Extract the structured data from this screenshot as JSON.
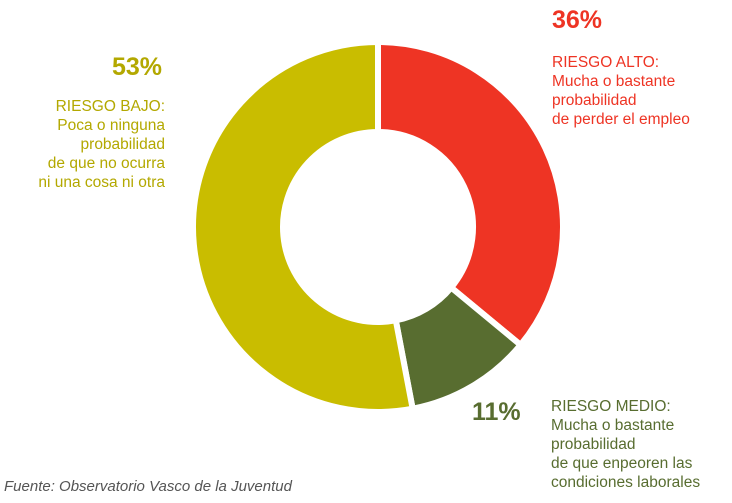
{
  "chart_data": {
    "type": "pie",
    "variant": "donut",
    "slices": [
      {
        "key": "alto",
        "value": 36,
        "value_label": "36%",
        "color": "#ee3424",
        "label_lines": [
          "RIESGO ALTO:",
          "Mucha o bastante",
          "probabilidad",
          "de perder el empleo"
        ]
      },
      {
        "key": "medio",
        "value": 11,
        "value_label": "11%",
        "color": "#586d30",
        "label_lines": [
          "RIESGO MEDIO:",
          "Mucha o bastante",
          "probabilidad",
          "de que enpeoren las",
          "condiciones laborales"
        ]
      },
      {
        "key": "bajo",
        "value": 53,
        "value_label": "53%",
        "color": "#c9bd00",
        "label_lines": [
          "RIESGO BAJO:",
          "Poca o ninguna",
          "probabilidad",
          "de que no ocurra",
          "ni una cosa ni otra"
        ]
      }
    ],
    "legend": "none"
  },
  "source": "Fuente: Observatorio Vasco de la Juventud"
}
